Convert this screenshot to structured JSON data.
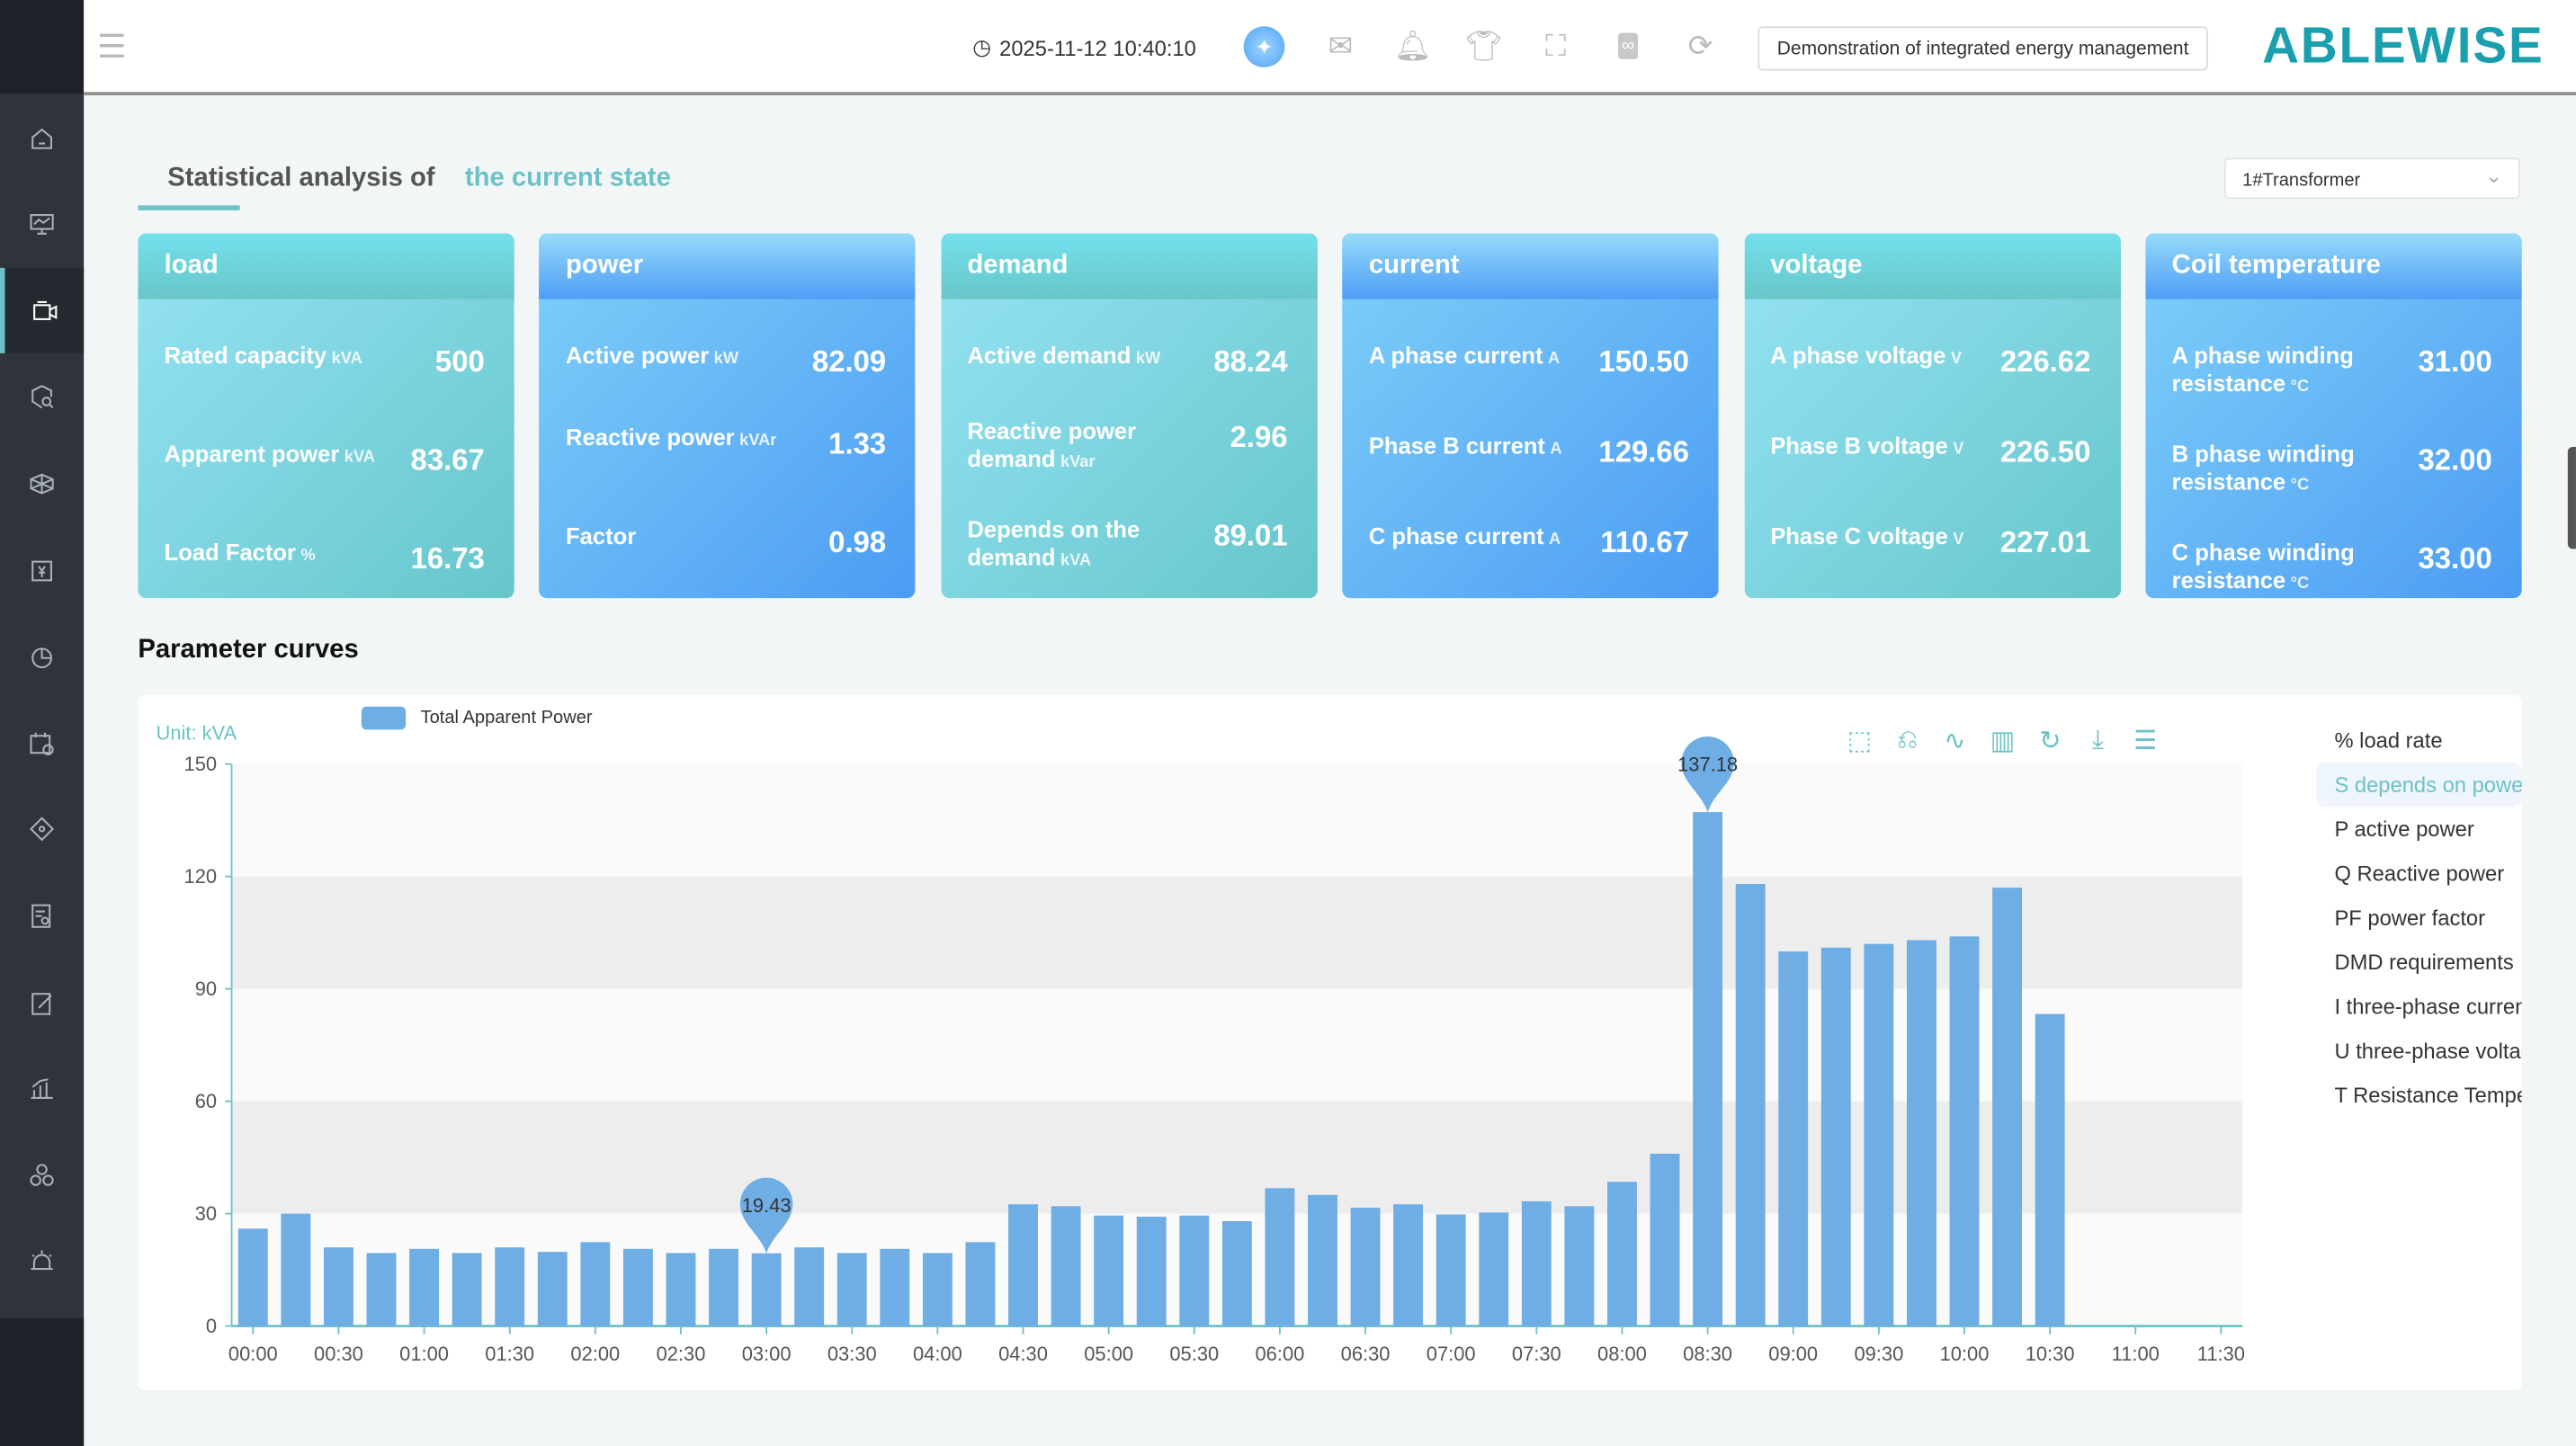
{
  "header": {
    "datetime": "2025-11-12 10:40:10",
    "demo_label": "Demonstration of integrated energy management",
    "logo": "ABLEWISE",
    "icons": [
      "menu-fold-icon",
      "clock-icon",
      "ai-assistant-icon",
      "mail-icon",
      "bell-icon",
      "theme-shirt-icon",
      "fullscreen-icon",
      "link-icon",
      "replay-icon"
    ]
  },
  "sidebar": {
    "items": [
      "home",
      "monitor",
      "video",
      "search-shield",
      "box",
      "billing",
      "pie-chart",
      "schedule",
      "diagnosis",
      "report",
      "edit-report",
      "bar-chart",
      "fan",
      "alarm"
    ],
    "active_index": 2
  },
  "tabs": {
    "title": "Statistical analysis of",
    "active": "the current state"
  },
  "transformer_select": {
    "value": "1#Transformer"
  },
  "cards": [
    {
      "title": "load",
      "style": "teal",
      "rows": [
        {
          "label": "Rated capacity",
          "unit": "kVA",
          "value": "500"
        },
        {
          "label": "Apparent power",
          "unit": "kVA",
          "value": "83.67"
        },
        {
          "label": "Load Factor",
          "unit": "%",
          "value": "16.73"
        }
      ]
    },
    {
      "title": "power",
      "style": "blue",
      "rows": [
        {
          "label": "Active power",
          "unit": "kW",
          "value": "82.09"
        },
        {
          "label": "Reactive power",
          "unit": "kVAr",
          "value": "1.33"
        },
        {
          "label": "Factor",
          "unit": "",
          "value": "0.98"
        }
      ]
    },
    {
      "title": "demand",
      "style": "teal",
      "rows": [
        {
          "label": "Active demand",
          "unit": "kW",
          "value": "88.24"
        },
        {
          "label": "Reactive power demand",
          "unit": "kVar",
          "value": "2.96"
        },
        {
          "label": "Depends on the demand",
          "unit": "kVA",
          "value": "89.01"
        }
      ]
    },
    {
      "title": "current",
      "style": "blue",
      "rows": [
        {
          "label": "A phase current",
          "unit": "A",
          "value": "150.50"
        },
        {
          "label": "Phase B current",
          "unit": "A",
          "value": "129.66"
        },
        {
          "label": "C phase current",
          "unit": "A",
          "value": "110.67"
        }
      ]
    },
    {
      "title": "voltage",
      "style": "teal",
      "rows": [
        {
          "label": "A phase voltage",
          "unit": "V",
          "value": "226.62"
        },
        {
          "label": "Phase B voltage",
          "unit": "V",
          "value": "226.50"
        },
        {
          "label": "Phase C voltage",
          "unit": "V",
          "value": "227.01"
        }
      ]
    },
    {
      "title": "Coil temperature",
      "style": "blue",
      "rows": [
        {
          "label": "A phase winding resistance",
          "unit": "°C",
          "value": "31.00"
        },
        {
          "label": "B phase winding resistance",
          "unit": "°C",
          "value": "32.00"
        },
        {
          "label": "C phase winding resistance",
          "unit": "°C",
          "value": "33.00"
        }
      ]
    }
  ],
  "parameter_curves": {
    "title": "Parameter curves",
    "unit_label": "Unit: kVA",
    "toolbox": [
      "zoom-icon",
      "zoom-reset-icon",
      "line-chart-icon",
      "bar-chart-icon",
      "refresh-icon",
      "download-icon",
      "data-view-icon"
    ],
    "metrics": [
      "% load rate",
      "S depends on power",
      "P active power",
      "Q Reactive power",
      "PF power factor",
      "DMD requirements",
      "I three-phase current",
      "U three-phase voltage",
      "T Resistance Temperature"
    ],
    "active_metric": 1
  },
  "chart_data": {
    "type": "bar",
    "legend": [
      "Total Apparent Power"
    ],
    "legend_position": "top-left",
    "ylabel": "Unit: kVA",
    "ylim": [
      0,
      150
    ],
    "yticks": [
      0,
      30,
      60,
      90,
      120,
      150
    ],
    "xticks": [
      "00:00",
      "00:30",
      "01:00",
      "01:30",
      "02:00",
      "02:30",
      "03:00",
      "03:30",
      "04:00",
      "04:30",
      "05:00",
      "05:30",
      "06:00",
      "06:30",
      "07:00",
      "07:30",
      "08:00",
      "08:30",
      "09:00",
      "09:30",
      "10:00",
      "10:30",
      "11:00",
      "11:30"
    ],
    "categories": [
      "00:00",
      "00:15",
      "00:30",
      "00:45",
      "01:00",
      "01:15",
      "01:30",
      "01:45",
      "02:00",
      "02:15",
      "02:30",
      "02:45",
      "03:00",
      "03:15",
      "03:30",
      "03:45",
      "04:00",
      "04:15",
      "04:30",
      "04:45",
      "05:00",
      "05:15",
      "05:30",
      "05:45",
      "06:00",
      "06:15",
      "06:30",
      "06:45",
      "07:00",
      "07:15",
      "07:30",
      "07:45",
      "08:00",
      "08:15",
      "08:30",
      "08:45",
      "09:00",
      "09:15",
      "09:30",
      "09:45",
      "10:00",
      "10:15",
      "10:30",
      "10:45",
      "11:00",
      "11:15",
      "11:30"
    ],
    "series": [
      {
        "name": "Total Apparent Power",
        "color": "#6fade5",
        "values": [
          26,
          30,
          21,
          19.5,
          20.6,
          19.5,
          21,
          19.8,
          22.4,
          20.6,
          19.5,
          20.6,
          19.43,
          21,
          19.5,
          20.6,
          19.5,
          22.4,
          32.5,
          32,
          29.5,
          29.2,
          29.5,
          28,
          36.8,
          35,
          31.6,
          32.5,
          29.8,
          30.3,
          33.3,
          32,
          38.5,
          46,
          137.18,
          118,
          100,
          101,
          102,
          103,
          104,
          117,
          83.3,
          null,
          null,
          null,
          null
        ]
      }
    ],
    "markers": [
      {
        "label": "min",
        "x": "03:00",
        "value": "19.43"
      },
      {
        "label": "max",
        "x": "08:30",
        "value": "137.18"
      }
    ],
    "grid": "alternating horizontal bands"
  }
}
